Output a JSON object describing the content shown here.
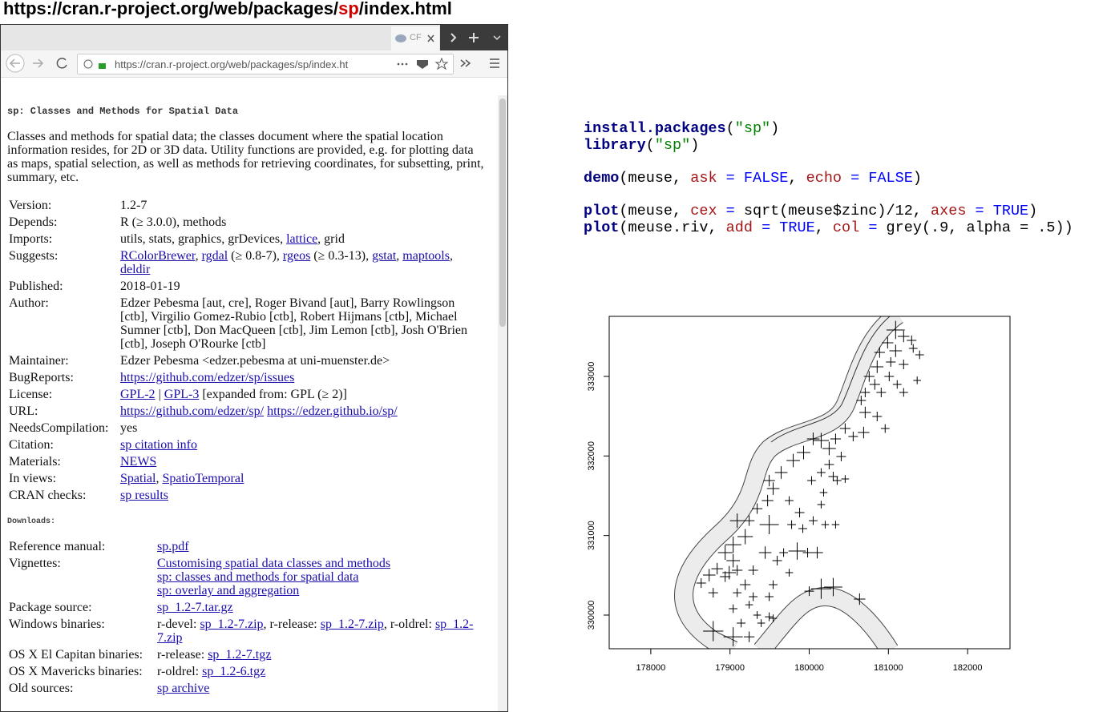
{
  "heading": [
    {
      "text": "https://cran.r-project.org/web/packages/",
      "color": "#000000"
    },
    {
      "text": "sp",
      "color": "#d00000"
    },
    {
      "text": "/index.html",
      "color": "#000000"
    }
  ],
  "browser": {
    "tab_label": "CF",
    "url": "https://cran.r-project.org/web/packages/sp/index.ht"
  },
  "page": {
    "title": "sp: Classes and Methods for Spatial Data",
    "description": "Classes and methods for spatial data; the classes document where the spatial location information resides, for 2D or 3D data. Utility functions are provided, e.g. for plotting data as maps, spatial selection, as well as methods for retrieving coordinates, for subsetting, print, summary, etc.",
    "fields": [
      {
        "label": "Version:",
        "value": [
          [
            "1.2-7"
          ]
        ]
      },
      {
        "label": "Depends:",
        "value": [
          [
            "R (≥ 3.0.0), methods"
          ]
        ]
      },
      {
        "label": "Imports:",
        "value": [
          [
            "utils, stats, graphics, grDevices, ",
            {
              "link": "lattice"
            },
            ", grid"
          ]
        ]
      },
      {
        "label": "Suggests:",
        "value": [
          [
            {
              "link": "RColorBrewer"
            },
            ", ",
            {
              "link": "rgdal"
            },
            " (≥ 0.8-7), ",
            {
              "link": "rgeos"
            },
            " (≥ 0.3-13), ",
            {
              "link": "gstat"
            },
            ", ",
            {
              "link": "maptools"
            },
            ", ",
            {
              "link": "deldir"
            }
          ]
        ]
      },
      {
        "label": "Published:",
        "value": [
          [
            "2018-01-19"
          ]
        ]
      },
      {
        "label": "Author:",
        "value": [
          [
            "Edzer Pebesma [aut, cre], Roger Bivand [aut], Barry Rowlingson [ctb], Virgilio Gomez-Rubio [ctb], Robert Hijmans [ctb], Michael Sumner [ctb], Don MacQueen [ctb], Jim Lemon [ctb], Josh O'Brien [ctb], Joseph O'Rourke [ctb]"
          ]
        ]
      },
      {
        "label": "Maintainer:",
        "value": [
          [
            "Edzer Pebesma <edzer.pebesma at uni-muenster.de>"
          ]
        ]
      },
      {
        "label": "BugReports:",
        "value": [
          [
            {
              "link": "https://github.com/edzer/sp/issues"
            }
          ]
        ]
      },
      {
        "label": "License:",
        "value": [
          [
            {
              "link": "GPL-2"
            },
            " | ",
            {
              "link": "GPL-3"
            },
            " [expanded from: GPL (≥ 2)]"
          ]
        ]
      },
      {
        "label": "URL:",
        "value": [
          [
            {
              "link": "https://github.com/edzer/sp/"
            },
            " ",
            {
              "link": "https://edzer.github.io/sp/"
            }
          ]
        ]
      },
      {
        "label": "NeedsCompilation:",
        "value": [
          [
            "yes"
          ]
        ]
      },
      {
        "label": "Citation:",
        "value": [
          [
            {
              "link": "sp citation info"
            }
          ]
        ]
      },
      {
        "label": "Materials:",
        "value": [
          [
            {
              "link": "NEWS"
            }
          ]
        ]
      },
      {
        "label": "In views:",
        "value": [
          [
            {
              "link": "Spatial"
            },
            ", ",
            {
              "link": "SpatioTemporal"
            }
          ]
        ]
      },
      {
        "label": "CRAN checks:",
        "value": [
          [
            {
              "link": "sp results"
            }
          ]
        ]
      }
    ],
    "downloads_title": "Downloads:",
    "downloads": [
      {
        "label": "Reference manual:",
        "value": [
          [
            {
              "link": "sp.pdf"
            }
          ]
        ]
      },
      {
        "label": "Vignettes:",
        "value": [
          [
            {
              "link": "Customising spatial data classes and methods"
            }
          ],
          [
            {
              "link": "sp: classes and methods for spatial data"
            }
          ],
          [
            {
              "link": "sp: overlay and aggregation"
            }
          ]
        ]
      },
      {
        "label": "Package source:",
        "value": [
          [
            {
              "link": "sp_1.2-7.tar.gz"
            }
          ]
        ]
      },
      {
        "label": "Windows binaries:",
        "value": [
          [
            "r-devel: ",
            {
              "link": "sp_1.2-7.zip"
            },
            ", r-release: ",
            {
              "link": "sp_1.2-7.zip"
            },
            ", r-oldrel: ",
            {
              "link": "sp_1.2-7.zip"
            }
          ]
        ]
      },
      {
        "label": "OS X El Capitan binaries:",
        "value": [
          [
            "r-release: ",
            {
              "link": "sp_1.2-7.tgz"
            }
          ]
        ]
      },
      {
        "label": "OS X Mavericks binaries:",
        "value": [
          [
            "r-oldrel: ",
            {
              "link": "sp_1.2-6.tgz"
            }
          ]
        ]
      },
      {
        "label": "Old sources:",
        "value": [
          [
            {
              "link": "sp archive"
            }
          ]
        ]
      }
    ]
  },
  "code": [
    [
      [
        {
          "text": "install.packages",
          "color": "#000080",
          "bold": true
        },
        {
          "text": "(",
          "color": "#000000"
        },
        {
          "text": "\"sp\"",
          "color": "#008000"
        },
        {
          "text": ")",
          "color": "#000000"
        }
      ],
      [
        {
          "text": "library",
          "color": "#000080",
          "bold": true
        },
        {
          "text": "(",
          "color": "#000000"
        },
        {
          "text": "\"sp\"",
          "color": "#008000"
        },
        {
          "text": ")",
          "color": "#000000"
        }
      ]
    ],
    [
      [
        {
          "text": "demo",
          "color": "#000080",
          "bold": true
        },
        {
          "text": "(meuse, ",
          "color": "#000000"
        },
        {
          "text": "ask",
          "color": "#a31515"
        },
        {
          "text": " = ",
          "color": "#0000ff"
        },
        {
          "text": "FALSE",
          "color": "#0000ff"
        },
        {
          "text": ", ",
          "color": "#000000"
        },
        {
          "text": "echo",
          "color": "#a31515"
        },
        {
          "text": " = ",
          "color": "#0000ff"
        },
        {
          "text": "FALSE",
          "color": "#0000ff"
        },
        {
          "text": ")",
          "color": "#000000"
        }
      ]
    ],
    [
      [
        {
          "text": "plot",
          "color": "#000080",
          "bold": true
        },
        {
          "text": "(meuse, ",
          "color": "#000000"
        },
        {
          "text": "cex",
          "color": "#a31515"
        },
        {
          "text": " = ",
          "color": "#0000ff"
        },
        {
          "text": "sqrt(meuse$zinc)/12, ",
          "color": "#000000"
        },
        {
          "text": "axes",
          "color": "#a31515"
        },
        {
          "text": " = ",
          "color": "#0000ff"
        },
        {
          "text": "TRUE",
          "color": "#0000ff"
        },
        {
          "text": ")",
          "color": "#000000"
        }
      ],
      [
        {
          "text": "plot",
          "color": "#000080",
          "bold": true
        },
        {
          "text": "(meuse.riv, ",
          "color": "#000000"
        },
        {
          "text": "add",
          "color": "#a31515"
        },
        {
          "text": " = ",
          "color": "#0000ff"
        },
        {
          "text": "TRUE",
          "color": "#0000ff"
        },
        {
          "text": ", ",
          "color": "#000000"
        },
        {
          "text": "col",
          "color": "#a31515"
        },
        {
          "text": " = ",
          "color": "#0000ff"
        },
        {
          "text": "grey(.9, alpha = .5))",
          "color": "#000000"
        }
      ]
    ]
  ],
  "chart_data": {
    "type": "scatter",
    "color": "#000000",
    "x": [
      181091,
      181192,
      181293,
      181394,
      181091,
      180990,
      180889,
      181030,
      181192,
      181313,
      180858,
      180757,
      180828,
      180707,
      180656,
      180909,
      181111,
      181192,
      181363,
      181010,
      180707,
      180858,
      180959,
      180687,
      180555,
      180454,
      180333,
      180252,
      180151,
      180050,
      179929,
      180404,
      180252,
      180151,
      180353,
      180454,
      180303,
      180030,
      180182,
      179798,
      179646,
      179495,
      179545,
      179475,
      179343,
      179495,
      179242,
      179747,
      179879,
      179778,
      179919,
      180050,
      180202,
      180333,
      180151,
      179980,
      179848,
      179677,
      180101,
      179596,
      179444,
      179091,
      179192,
      179040,
      178939,
      179040,
      178990,
      178838,
      178737,
      178939,
      179091,
      179293,
      179192,
      178636,
      178788,
      179091,
      179293,
      179495,
      179545,
      179747,
      179242,
      179343,
      179141,
      179394,
      179545,
      179040,
      179040,
      179242,
      178788,
      180151,
      180303,
      180636,
      180000,
      179495
    ],
    "values": [
      333584,
      333503,
      333453,
      333272,
      333322,
      333423,
      333302,
      333181,
      333151,
      333352,
      333121,
      333000,
      332899,
      332799,
      332698,
      332799,
      332899,
      332799,
      332950,
      333000,
      332547,
      332497,
      332345,
      332295,
      332245,
      332345,
      332215,
      332094,
      332194,
      332215,
      332043,
      331993,
      331892,
      331792,
      331691,
      331711,
      331741,
      331691,
      331540,
      331943,
      331792,
      331691,
      331590,
      331439,
      331338,
      331137,
      331187,
      331439,
      331288,
      331137,
      331087,
      331187,
      331137,
      331137,
      331389,
      330785,
      330805,
      330785,
      330785,
      330684,
      330785,
      331187,
      330986,
      330885,
      330785,
      330684,
      330533,
      330583,
      330503,
      330483,
      330563,
      330563,
      330382,
      330402,
      330281,
      330281,
      330231,
      330231,
      330382,
      330533,
      330130,
      330000,
      329899,
      329899,
      329959,
      330080,
      329727,
      329727,
      329798,
      330331,
      330352,
      330201,
      330301,
      329979
    ],
    "sizes": [
      1.9,
      1.2,
      1.0,
      0.9,
      1.3,
      1.2,
      1.1,
      1.0,
      1.0,
      0.9,
      1.3,
      1.1,
      1.1,
      1.0,
      1.0,
      1.0,
      0.9,
      0.9,
      0.8,
      1.0,
      1.2,
      1.0,
      0.9,
      1.2,
      1.0,
      1.1,
      1.1,
      1.4,
      1.6,
      1.3,
      1.4,
      1.0,
      1.0,
      0.9,
      0.9,
      0.8,
      1.0,
      0.9,
      0.8,
      1.4,
      1.3,
      1.2,
      1.3,
      1.2,
      1.1,
      2.0,
      1.1,
      0.9,
      1.0,
      0.9,
      0.9,
      0.9,
      0.8,
      0.8,
      0.8,
      1.0,
      1.8,
      0.9,
      1.2,
      1.0,
      1.3,
      1.5,
      1.6,
      1.7,
      1.5,
      1.4,
      1.4,
      1.2,
      1.3,
      1.1,
      1.1,
      1.0,
      1.1,
      1.0,
      1.0,
      0.9,
      0.9,
      0.9,
      0.9,
      0.8,
      0.8,
      0.8,
      0.9,
      0.8,
      0.8,
      0.9,
      2.0,
      1.1,
      2.1,
      2.1,
      1.9,
      1.2,
      1.0,
      0.9
    ],
    "xlim": [
      177475,
      182535
    ],
    "ylim": [
      329577,
      333755
    ],
    "xticks": [
      178000,
      179000,
      180000,
      181000,
      182000
    ],
    "yticks": [
      330000,
      331000,
      332000,
      333000
    ]
  }
}
